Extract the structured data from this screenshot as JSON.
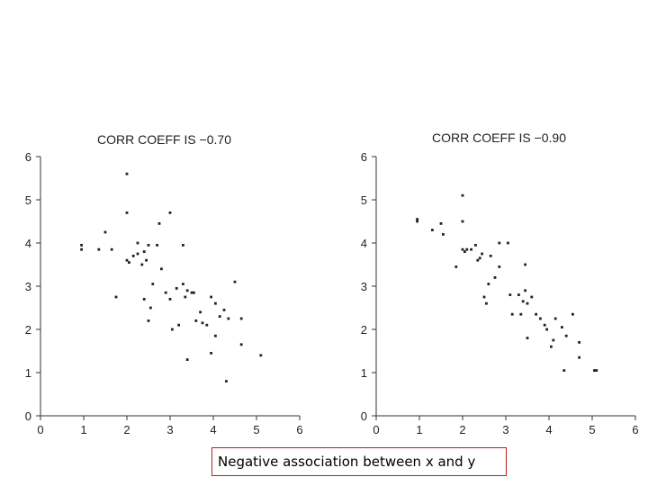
{
  "caption": "Negative association between x and y",
  "chart_data": [
    {
      "type": "scatter",
      "title": "CORR COEFF IS −0.70",
      "xlim": [
        0,
        6
      ],
      "ylim": [
        0,
        6
      ],
      "x_ticks": [
        0,
        1,
        2,
        3,
        4,
        5,
        6
      ],
      "y_ticks": [
        0,
        1,
        2,
        3,
        4,
        5,
        6
      ],
      "point_color": "#222222",
      "points": [
        [
          0.95,
          3.95
        ],
        [
          0.95,
          3.85
        ],
        [
          1.35,
          3.85
        ],
        [
          1.5,
          4.25
        ],
        [
          1.65,
          3.85
        ],
        [
          1.75,
          2.75
        ],
        [
          2.0,
          5.6
        ],
        [
          2.0,
          4.7
        ],
        [
          2.0,
          3.6
        ],
        [
          2.05,
          3.55
        ],
        [
          2.15,
          3.7
        ],
        [
          2.25,
          3.75
        ],
        [
          2.25,
          4.0
        ],
        [
          2.35,
          3.5
        ],
        [
          2.4,
          3.8
        ],
        [
          2.4,
          2.7
        ],
        [
          2.45,
          3.6
        ],
        [
          2.5,
          2.2
        ],
        [
          2.5,
          3.95
        ],
        [
          2.55,
          2.5
        ],
        [
          2.6,
          3.05
        ],
        [
          2.7,
          3.95
        ],
        [
          2.75,
          4.45
        ],
        [
          2.8,
          3.4
        ],
        [
          2.9,
          2.85
        ],
        [
          3.0,
          4.7
        ],
        [
          3.0,
          2.7
        ],
        [
          3.05,
          2.0
        ],
        [
          3.15,
          2.95
        ],
        [
          3.2,
          2.1
        ],
        [
          3.3,
          3.95
        ],
        [
          3.3,
          3.05
        ],
        [
          3.35,
          2.75
        ],
        [
          3.4,
          2.9
        ],
        [
          3.4,
          1.3
        ],
        [
          3.5,
          2.85
        ],
        [
          3.55,
          2.85
        ],
        [
          3.6,
          2.2
        ],
        [
          3.7,
          2.4
        ],
        [
          3.75,
          2.15
        ],
        [
          3.85,
          2.1
        ],
        [
          3.95,
          2.75
        ],
        [
          3.95,
          1.45
        ],
        [
          4.05,
          1.85
        ],
        [
          4.05,
          2.6
        ],
        [
          4.15,
          2.3
        ],
        [
          4.25,
          2.45
        ],
        [
          4.3,
          0.8
        ],
        [
          4.35,
          2.25
        ],
        [
          4.5,
          3.1
        ],
        [
          4.65,
          2.25
        ],
        [
          4.65,
          1.65
        ],
        [
          5.1,
          1.4
        ]
      ]
    },
    {
      "type": "scatter",
      "title": "CORR COEFF IS −0.90",
      "xlim": [
        0,
        6
      ],
      "ylim": [
        0,
        6
      ],
      "x_ticks": [
        0,
        1,
        2,
        3,
        4,
        5,
        6
      ],
      "y_ticks": [
        0,
        1,
        2,
        3,
        4,
        5,
        6
      ],
      "point_color": "#222222",
      "points": [
        [
          0.95,
          4.55
        ],
        [
          0.95,
          4.5
        ],
        [
          1.3,
          4.3
        ],
        [
          1.5,
          4.45
        ],
        [
          1.55,
          4.2
        ],
        [
          1.85,
          3.45
        ],
        [
          2.0,
          5.1
        ],
        [
          2.0,
          4.5
        ],
        [
          2.0,
          3.85
        ],
        [
          2.05,
          3.8
        ],
        [
          2.1,
          3.85
        ],
        [
          2.2,
          3.85
        ],
        [
          2.3,
          3.95
        ],
        [
          2.35,
          3.6
        ],
        [
          2.4,
          3.65
        ],
        [
          2.45,
          3.75
        ],
        [
          2.5,
          2.75
        ],
        [
          2.55,
          2.6
        ],
        [
          2.6,
          3.05
        ],
        [
          2.65,
          3.7
        ],
        [
          2.75,
          3.2
        ],
        [
          2.85,
          4.0
        ],
        [
          2.85,
          3.45
        ],
        [
          3.05,
          4.0
        ],
        [
          3.1,
          2.8
        ],
        [
          3.15,
          2.35
        ],
        [
          3.3,
          2.8
        ],
        [
          3.35,
          2.35
        ],
        [
          3.4,
          2.65
        ],
        [
          3.45,
          2.9
        ],
        [
          3.45,
          3.5
        ],
        [
          3.5,
          1.8
        ],
        [
          3.5,
          2.6
        ],
        [
          3.6,
          2.75
        ],
        [
          3.7,
          2.35
        ],
        [
          3.8,
          2.25
        ],
        [
          3.9,
          2.1
        ],
        [
          3.95,
          2.0
        ],
        [
          4.05,
          1.6
        ],
        [
          4.1,
          1.75
        ],
        [
          4.15,
          2.25
        ],
        [
          4.3,
          2.05
        ],
        [
          4.35,
          1.05
        ],
        [
          4.4,
          1.85
        ],
        [
          4.55,
          2.35
        ],
        [
          4.7,
          1.35
        ],
        [
          4.7,
          1.7
        ],
        [
          5.05,
          1.05
        ],
        [
          5.1,
          1.05
        ]
      ]
    }
  ]
}
